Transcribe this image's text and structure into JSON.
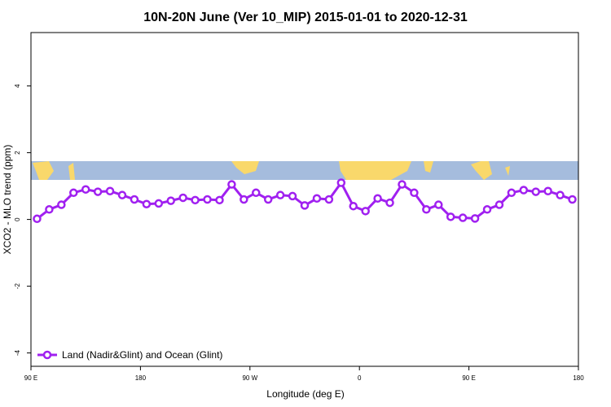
{
  "chart_data": {
    "type": "line",
    "title": "10N-20N June (Ver 10_MIP)   2015-01-01 to 2020-12-31",
    "x_label": "Longitude (deg E)",
    "y_label": "XCO2 - MLO trend (ppm)",
    "x": [
      95,
      105,
      115,
      125,
      135,
      145,
      155,
      165,
      175,
      185,
      195,
      205,
      215,
      225,
      235,
      245,
      255,
      265,
      275,
      285,
      295,
      305,
      315,
      325,
      335,
      345,
      355,
      365,
      375,
      385,
      395,
      405,
      415,
      425,
      435,
      445,
      455,
      465,
      475,
      485,
      495,
      505,
      515,
      525,
      535
    ],
    "series": [
      {
        "name": "Land (Nadir&Glint) and Ocean (Glint)",
        "color": "#a020f0",
        "values": [
          0.02,
          0.3,
          0.44,
          0.8,
          0.9,
          0.83,
          0.85,
          0.73,
          0.6,
          0.46,
          0.48,
          0.56,
          0.65,
          0.58,
          0.6,
          0.58,
          1.05,
          0.6,
          0.8,
          0.6,
          0.73,
          0.7,
          0.42,
          0.63,
          0.6,
          1.1,
          0.4,
          0.25,
          0.63,
          0.5,
          1.05,
          0.8,
          0.3,
          0.44,
          0.08,
          0.05,
          0.03,
          0.3,
          0.44,
          0.8,
          0.88,
          0.83,
          0.85,
          0.73,
          0.6
        ]
      }
    ],
    "xlim": [
      90,
      540
    ],
    "xticks": [
      {
        "value": 90,
        "label": "90 E"
      },
      180,
      {
        "value": 270,
        "label": "90 W"
      },
      {
        "value": 360,
        "label": "0"
      },
      {
        "value": 450,
        "label": "90 E"
      },
      180
    ],
    "ylim": [
      -4.4,
      5.6
    ],
    "yticks": [
      -4,
      -2,
      0,
      2,
      4
    ],
    "legend": "bottom-left"
  }
}
